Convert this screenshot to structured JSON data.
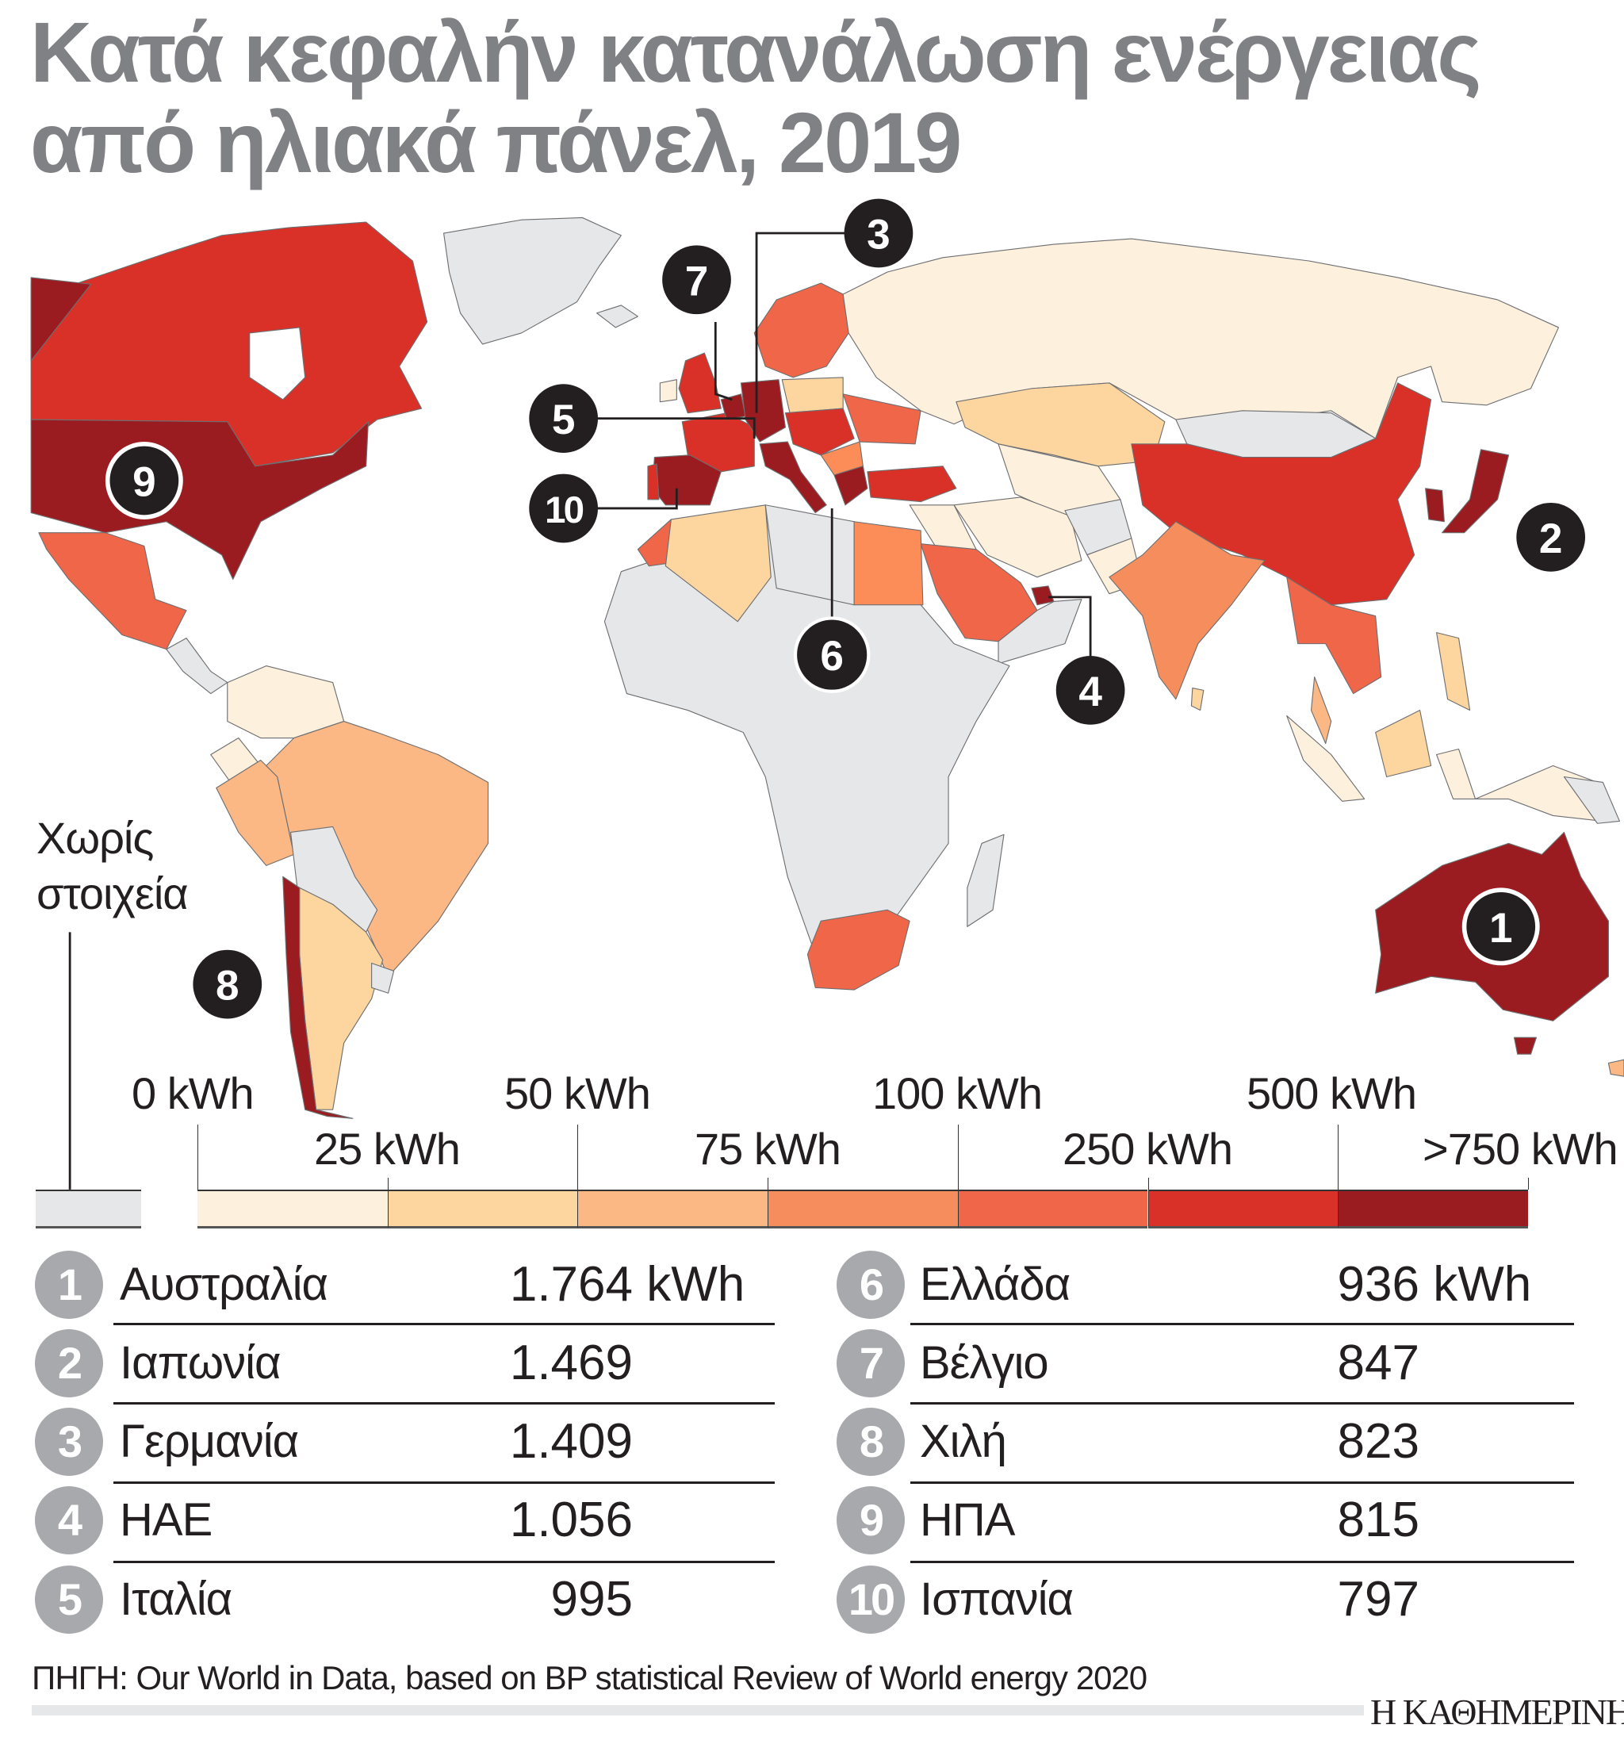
{
  "title": {
    "line1": "Κατά κεφαλήν κατανάλωση ενέργειας",
    "line2": "από ηλιακά πάνελ, 2019"
  },
  "colors": {
    "no_data": "#e6e7e8",
    "scale": [
      "#fdf0dd",
      "#fdd59f",
      "#fbb885",
      "#f58d5c",
      "#f06649",
      "#d93128",
      "#9b1c20"
    ],
    "title": "#808184",
    "rank_circle": "#a7a9ac"
  },
  "legend": {
    "no_data_line1": "Χωρίς",
    "no_data_line2": "στοιχεία",
    "top_labels": [
      "0 kWh",
      "50 kWh",
      "100 kWh",
      "500 kWh"
    ],
    "bottom_labels": [
      "25 kWh",
      "75 kWh",
      "250 kWh",
      ">750 kWh"
    ]
  },
  "markers": [
    "1",
    "2",
    "3",
    "4",
    "5",
    "6",
    "7",
    "8",
    "9",
    "10"
  ],
  "chart_data": {
    "type": "table",
    "title": "Κατά κεφαλήν κατανάλωση ενέργειας από ηλιακά πάνελ, 2019",
    "unit": "kWh",
    "rows": [
      {
        "rank": "1",
        "country": "Αυστραλία",
        "value": "1.764",
        "unit": " kWh"
      },
      {
        "rank": "2",
        "country": "Ιαπωνία",
        "value": "1.469"
      },
      {
        "rank": "3",
        "country": "Γερμανία",
        "value": "1.409"
      },
      {
        "rank": "4",
        "country": "ΗΑΕ",
        "value": "1.056"
      },
      {
        "rank": "5",
        "country": "Ιταλία",
        "value": "995"
      },
      {
        "rank": "6",
        "country": "Ελλάδα",
        "value": "936",
        "unit": " kWh"
      },
      {
        "rank": "7",
        "country": "Βέλγιο",
        "value": "847"
      },
      {
        "rank": "8",
        "country": "Χιλή",
        "value": "823"
      },
      {
        "rank": "9",
        "country": "ΗΠΑ",
        "value": "815"
      },
      {
        "rank": "10",
        "country": "Ισπανία",
        "value": "797"
      }
    ],
    "map_legend_bins": [
      "Χωρίς στοιχεία",
      "0–25 kWh",
      "25–50 kWh",
      "50–75 kWh",
      "75–100 kWh",
      "100–250 kWh",
      "250–500 kWh",
      "500–>750 kWh"
    ]
  },
  "source": "ΠΗΓΗ: Our World in Data, based on BP statistical Review of World energy 2020",
  "logo": "Η ΚΑΘΗΜΕΡΙΝΗ"
}
